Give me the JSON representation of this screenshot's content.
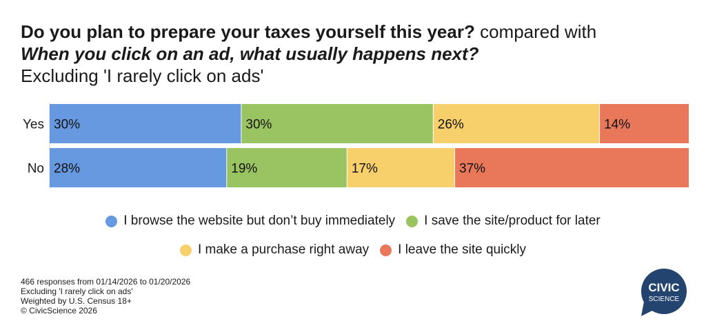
{
  "header": {
    "question_1": "Do you plan to prepare your taxes yourself this year?",
    "connector": " compared with",
    "question_2": "When you click on an ad, what usually happens next?",
    "subtitle": "Excluding 'I rarely click on ads'"
  },
  "chart_data": {
    "type": "bar",
    "orientation": "horizontal-stacked-100",
    "categories": [
      "Yes",
      "No"
    ],
    "series": [
      {
        "name": "I browse the website but don’t buy immediately",
        "values": [
          30,
          28
        ],
        "color": "#6699e0"
      },
      {
        "name": "I save the site/product for later",
        "values": [
          30,
          19
        ],
        "color": "#99c461"
      },
      {
        "name": "I make a purchase right away",
        "values": [
          26,
          17
        ],
        "color": "#f8d06b"
      },
      {
        "name": "I leave the site quickly",
        "values": [
          14,
          37
        ],
        "color": "#e9785a"
      }
    ],
    "value_suffix": "%",
    "xlim": [
      0,
      100
    ],
    "legend_position": "bottom"
  },
  "footer": {
    "line_1": "466 responses from 01/14/2026 to 01/20/2026",
    "line_2": "Excluding 'I rarely click on ads'",
    "line_3": "Weighted by U.S. Census 18+",
    "line_4": "© CivicScience 2026"
  },
  "logo": {
    "line_1": "CIVIC",
    "line_2": "SCIENCE",
    "color": "#23446f"
  }
}
